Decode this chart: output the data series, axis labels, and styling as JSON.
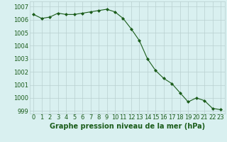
{
  "x": [
    0,
    1,
    2,
    3,
    4,
    5,
    6,
    7,
    8,
    9,
    10,
    11,
    12,
    13,
    14,
    15,
    16,
    17,
    18,
    19,
    20,
    21,
    22,
    23
  ],
  "y": [
    1006.4,
    1006.1,
    1006.2,
    1006.5,
    1006.4,
    1006.4,
    1006.5,
    1006.6,
    1006.7,
    1006.8,
    1006.6,
    1006.1,
    1005.3,
    1004.4,
    1003.0,
    1002.1,
    1001.5,
    1001.1,
    1000.4,
    999.7,
    1000.0,
    999.8,
    999.2,
    999.1
  ],
  "line_color": "#1a5c1a",
  "marker": "D",
  "marker_size": 2.0,
  "bg_color": "#d9f0f0",
  "grid_color": "#b8d0d0",
  "title": "Graphe pression niveau de la mer (hPa)",
  "ylim": [
    998.8,
    1007.4
  ],
  "yticks": [
    999,
    1000,
    1001,
    1002,
    1003,
    1004,
    1005,
    1006,
    1007
  ],
  "xtick_labels": [
    "0",
    "1",
    "2",
    "3",
    "4",
    "5",
    "6",
    "7",
    "8",
    "9",
    "10",
    "11",
    "12",
    "13",
    "14",
    "15",
    "16",
    "17",
    "18",
    "19",
    "20",
    "21",
    "22",
    "23"
  ],
  "title_fontsize": 7.0,
  "tick_fontsize": 6.0,
  "text_color": "#1a5c1a"
}
